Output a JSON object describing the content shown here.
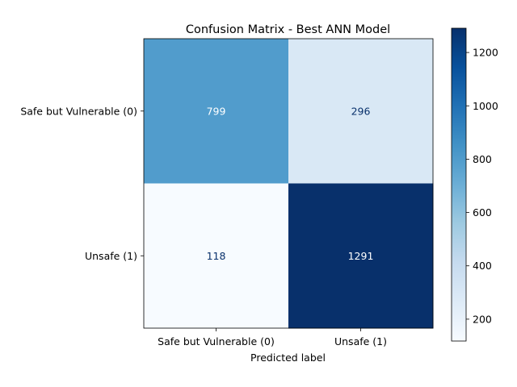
{
  "chart_data": {
    "type": "heatmap",
    "title": "Confusion Matrix - Best ANN Model",
    "xlabel": "Predicted label",
    "ylabel": "",
    "x_categories": [
      "Safe but Vulnerable (0)",
      "Unsafe (1)"
    ],
    "y_categories": [
      "Safe but Vulnerable (0)",
      "Unsafe (1)"
    ],
    "values": [
      [
        799,
        296
      ],
      [
        118,
        1291
      ]
    ],
    "colormap": "Blues",
    "vmin": 118,
    "vmax": 1291,
    "colorbar_ticks": [
      200,
      400,
      600,
      800,
      1000,
      1200
    ],
    "colors": {
      "low": "#f7fbff",
      "high": "#08306b",
      "text_light": "#ffffff",
      "text_dark": "#08306b"
    }
  }
}
